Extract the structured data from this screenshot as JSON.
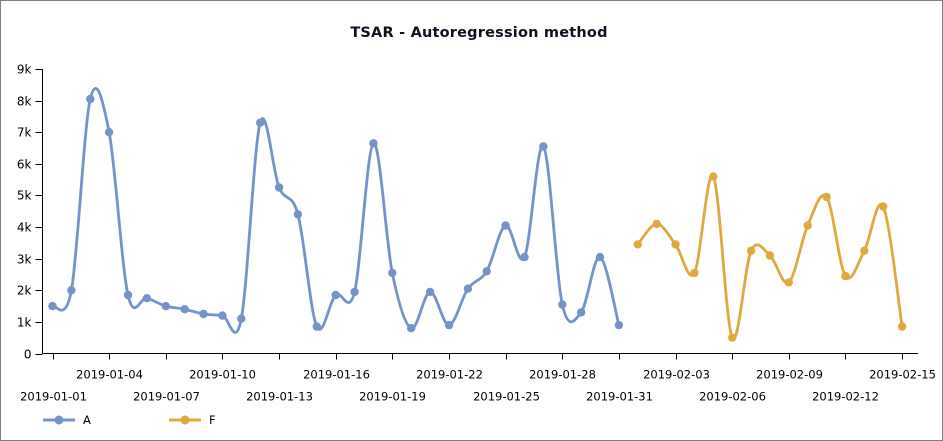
{
  "window": {
    "background": "#ffffff",
    "border_color": "#7f7f7f"
  },
  "chart_data": {
    "type": "line",
    "title": "TSAR - Autoregression method",
    "line_style": "smooth-spline-with-markers",
    "grid": "off",
    "legend_position": "bottom-left",
    "y_axis": {
      "min": 0,
      "max": 9000,
      "ticks": [
        {
          "value": 0,
          "label": "0"
        },
        {
          "value": 1000,
          "label": "1k"
        },
        {
          "value": 2000,
          "label": "2k"
        },
        {
          "value": 3000,
          "label": "3k"
        },
        {
          "value": 4000,
          "label": "4k"
        },
        {
          "value": 5000,
          "label": "5k"
        },
        {
          "value": 6000,
          "label": "6k"
        },
        {
          "value": 7000,
          "label": "7k"
        },
        {
          "value": 8000,
          "label": "8k"
        },
        {
          "value": 9000,
          "label": "9k"
        }
      ]
    },
    "x_axis": {
      "unit": "day",
      "first_date": "2019-01-01",
      "last_date": "2019-02-15",
      "ticks": [
        {
          "day": 1,
          "label": "2019-01-01",
          "row": "low"
        },
        {
          "day": 4,
          "label": "2019-01-04",
          "row": "high"
        },
        {
          "day": 7,
          "label": "2019-01-07",
          "row": "low"
        },
        {
          "day": 10,
          "label": "2019-01-10",
          "row": "high"
        },
        {
          "day": 13,
          "label": "2019-01-13",
          "row": "low"
        },
        {
          "day": 16,
          "label": "2019-01-16",
          "row": "high"
        },
        {
          "day": 19,
          "label": "2019-01-19",
          "row": "low"
        },
        {
          "day": 22,
          "label": "2019-01-22",
          "row": "high"
        },
        {
          "day": 25,
          "label": "2019-01-25",
          "row": "low"
        },
        {
          "day": 28,
          "label": "2019-01-28",
          "row": "high"
        },
        {
          "day": 31,
          "label": "2019-01-31",
          "row": "low"
        },
        {
          "day": 34,
          "label": "2019-02-03",
          "row": "high"
        },
        {
          "day": 37,
          "label": "2019-02-06",
          "row": "low"
        },
        {
          "day": 40,
          "label": "2019-02-09",
          "row": "high"
        },
        {
          "day": 43,
          "label": "2019-02-12",
          "row": "low"
        },
        {
          "day": 46,
          "label": "2019-02-15",
          "row": "high"
        }
      ]
    },
    "series": [
      {
        "name": "A",
        "color": "#7493c9",
        "start_day": 1,
        "start_date": "2019-01-01",
        "values": [
          1500,
          2000,
          8050,
          7000,
          1850,
          1750,
          1500,
          1400,
          1250,
          1200,
          1100,
          7300,
          5250,
          4400,
          850,
          1850,
          1950,
          6650,
          2550,
          800,
          1950,
          900,
          2050,
          2600,
          4050,
          3050,
          6550,
          1550,
          1300,
          3050,
          900
        ]
      },
      {
        "name": "F",
        "color": "#dfa93e",
        "start_day": 32,
        "start_date": "2019-02-01",
        "values": [
          3450,
          4100,
          3450,
          2550,
          5600,
          500,
          3250,
          3100,
          2250,
          4050,
          4950,
          2450,
          3250,
          4650,
          850
        ]
      }
    ]
  }
}
